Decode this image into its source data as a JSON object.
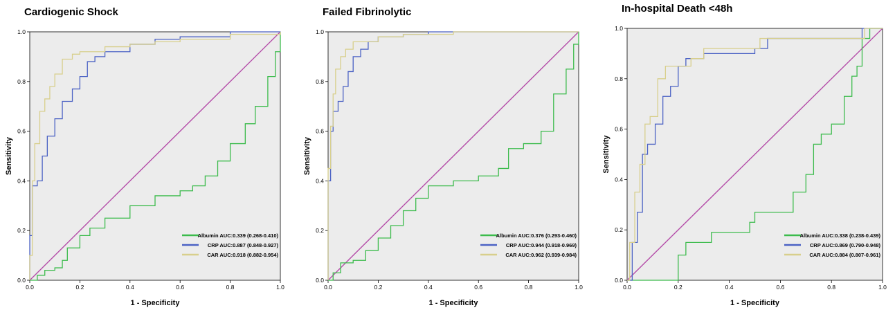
{
  "chart_data": [
    {
      "type": "line",
      "title": "Cardiogenic Shock",
      "xlabel": "1 - Specificity",
      "ylabel": "Sensitivity",
      "xlim": [
        0,
        1
      ],
      "ylim": [
        0,
        1
      ],
      "x_ticks": [
        "0.0",
        "0.2",
        "0.4",
        "0.6",
        "0.8",
        "1.0"
      ],
      "y_ticks": [
        "0.0",
        "0.2",
        "0.4",
        "0.6",
        "0.8",
        "1.0"
      ],
      "legend": "bottom-right",
      "grid": false,
      "reference_line": {
        "color": "#b44ca8",
        "points": [
          [
            0,
            0
          ],
          [
            1,
            1
          ]
        ]
      },
      "series": [
        {
          "name": "Albumin AUC:0.339 (0.268-0.410)",
          "color": "#3cbb4c",
          "points": [
            [
              0,
              0
            ],
            [
              0.03,
              0.02
            ],
            [
              0.06,
              0.04
            ],
            [
              0.1,
              0.05
            ],
            [
              0.13,
              0.08
            ],
            [
              0.15,
              0.13
            ],
            [
              0.2,
              0.18
            ],
            [
              0.24,
              0.21
            ],
            [
              0.3,
              0.25
            ],
            [
              0.4,
              0.3
            ],
            [
              0.5,
              0.34
            ],
            [
              0.6,
              0.36
            ],
            [
              0.65,
              0.38
            ],
            [
              0.7,
              0.42
            ],
            [
              0.75,
              0.48
            ],
            [
              0.8,
              0.55
            ],
            [
              0.86,
              0.63
            ],
            [
              0.9,
              0.7
            ],
            [
              0.95,
              0.82
            ],
            [
              0.98,
              0.92
            ],
            [
              1,
              1
            ]
          ]
        },
        {
          "name": "CRP AUC:0.887 (0.848-0.927)",
          "color": "#4b62c4",
          "points": [
            [
              0,
              0
            ],
            [
              0,
              0.18
            ],
            [
              0.01,
              0.38
            ],
            [
              0.03,
              0.4
            ],
            [
              0.05,
              0.5
            ],
            [
              0.07,
              0.58
            ],
            [
              0.1,
              0.65
            ],
            [
              0.13,
              0.72
            ],
            [
              0.17,
              0.77
            ],
            [
              0.2,
              0.82
            ],
            [
              0.23,
              0.88
            ],
            [
              0.26,
              0.9
            ],
            [
              0.3,
              0.92
            ],
            [
              0.4,
              0.95
            ],
            [
              0.5,
              0.97
            ],
            [
              0.6,
              0.98
            ],
            [
              0.8,
              1
            ],
            [
              1,
              1
            ]
          ]
        },
        {
          "name": "CAR AUC:0.918 (0.882-0.954)",
          "color": "#d8cf8c",
          "points": [
            [
              0,
              0
            ],
            [
              0,
              0.1
            ],
            [
              0.01,
              0.4
            ],
            [
              0.02,
              0.55
            ],
            [
              0.04,
              0.68
            ],
            [
              0.06,
              0.73
            ],
            [
              0.08,
              0.78
            ],
            [
              0.1,
              0.83
            ],
            [
              0.13,
              0.89
            ],
            [
              0.17,
              0.91
            ],
            [
              0.2,
              0.92
            ],
            [
              0.3,
              0.94
            ],
            [
              0.4,
              0.95
            ],
            [
              0.5,
              0.96
            ],
            [
              0.6,
              0.97
            ],
            [
              0.8,
              0.99
            ],
            [
              1,
              1
            ]
          ]
        }
      ]
    },
    {
      "type": "line",
      "title": "Failed Fibrinolytic",
      "xlabel": "1 - Specificity",
      "ylabel": "Sensitivity",
      "xlim": [
        0,
        1
      ],
      "ylim": [
        0,
        1
      ],
      "x_ticks": [
        "0.0",
        "0.2",
        "0.4",
        "0.6",
        "0.8",
        "1.0"
      ],
      "y_ticks": [
        "0.0",
        "0.2",
        "0.4",
        "0.6",
        "0.8",
        "1.0"
      ],
      "legend": "bottom-right",
      "grid": false,
      "reference_line": {
        "color": "#b44ca8",
        "points": [
          [
            0,
            0
          ],
          [
            1,
            1
          ]
        ]
      },
      "series": [
        {
          "name": "Albumin AUC:0.376 (0.293-0.460)",
          "color": "#3cbb4c",
          "points": [
            [
              0,
              0
            ],
            [
              0.02,
              0.03
            ],
            [
              0.05,
              0.07
            ],
            [
              0.1,
              0.08
            ],
            [
              0.15,
              0.12
            ],
            [
              0.2,
              0.17
            ],
            [
              0.25,
              0.22
            ],
            [
              0.3,
              0.28
            ],
            [
              0.35,
              0.33
            ],
            [
              0.4,
              0.38
            ],
            [
              0.5,
              0.4
            ],
            [
              0.6,
              0.42
            ],
            [
              0.68,
              0.45
            ],
            [
              0.72,
              0.53
            ],
            [
              0.78,
              0.55
            ],
            [
              0.85,
              0.6
            ],
            [
              0.9,
              0.75
            ],
            [
              0.95,
              0.85
            ],
            [
              0.98,
              0.95
            ],
            [
              1,
              1
            ]
          ]
        },
        {
          "name": "CRP AUC:0.944 (0.918-0.969)",
          "color": "#4b62c4",
          "points": [
            [
              0,
              0
            ],
            [
              0,
              0.4
            ],
            [
              0.01,
              0.6
            ],
            [
              0.02,
              0.68
            ],
            [
              0.04,
              0.72
            ],
            [
              0.06,
              0.78
            ],
            [
              0.08,
              0.84
            ],
            [
              0.1,
              0.9
            ],
            [
              0.13,
              0.93
            ],
            [
              0.16,
              0.96
            ],
            [
              0.2,
              0.98
            ],
            [
              0.3,
              0.99
            ],
            [
              0.4,
              1
            ],
            [
              1,
              1
            ]
          ]
        },
        {
          "name": "CAR AUC:0.962 (0.939-0.984)",
          "color": "#d8cf8c",
          "points": [
            [
              0,
              0
            ],
            [
              0,
              0.45
            ],
            [
              0.01,
              0.62
            ],
            [
              0.02,
              0.75
            ],
            [
              0.03,
              0.85
            ],
            [
              0.05,
              0.9
            ],
            [
              0.07,
              0.93
            ],
            [
              0.1,
              0.96
            ],
            [
              0.2,
              0.98
            ],
            [
              0.3,
              0.99
            ],
            [
              0.5,
              1
            ],
            [
              1,
              1
            ]
          ]
        }
      ]
    },
    {
      "type": "line",
      "title": "In-hospital Death <48h",
      "xlabel": "1 - Specificity",
      "ylabel": "Sensitivity",
      "xlim": [
        0,
        1
      ],
      "ylim": [
        0,
        1
      ],
      "x_ticks": [
        "0.0",
        "0.2",
        "0.4",
        "0.6",
        "0.8",
        "1.0"
      ],
      "y_ticks": [
        "0.0",
        "0.2",
        "0.4",
        "0.6",
        "0.8",
        "1.0"
      ],
      "legend": "bottom-right",
      "grid": false,
      "reference_line": {
        "color": "#b44ca8",
        "points": [
          [
            0,
            0
          ],
          [
            1,
            1
          ]
        ]
      },
      "series": [
        {
          "name": "Albumin AUC:0.338 (0.238-0.439)",
          "color": "#3cbb4c",
          "points": [
            [
              0,
              0
            ],
            [
              0.17,
              0
            ],
            [
              0.2,
              0.1
            ],
            [
              0.23,
              0.15
            ],
            [
              0.3,
              0.15
            ],
            [
              0.33,
              0.19
            ],
            [
              0.45,
              0.19
            ],
            [
              0.48,
              0.23
            ],
            [
              0.5,
              0.27
            ],
            [
              0.6,
              0.27
            ],
            [
              0.65,
              0.35
            ],
            [
              0.7,
              0.42
            ],
            [
              0.73,
              0.54
            ],
            [
              0.76,
              0.58
            ],
            [
              0.8,
              0.62
            ],
            [
              0.85,
              0.73
            ],
            [
              0.88,
              0.81
            ],
            [
              0.9,
              0.85
            ],
            [
              0.92,
              0.96
            ],
            [
              0.95,
              1
            ],
            [
              1,
              1
            ]
          ]
        },
        {
          "name": "CRP AUC:0.869 (0.790-0.948)",
          "color": "#4b62c4",
          "points": [
            [
              0,
              0
            ],
            [
              0.02,
              0.15
            ],
            [
              0.04,
              0.27
            ],
            [
              0.06,
              0.5
            ],
            [
              0.08,
              0.54
            ],
            [
              0.11,
              0.62
            ],
            [
              0.14,
              0.73
            ],
            [
              0.17,
              0.77
            ],
            [
              0.2,
              0.85
            ],
            [
              0.23,
              0.88
            ],
            [
              0.3,
              0.9
            ],
            [
              0.5,
              0.92
            ],
            [
              0.55,
              0.96
            ],
            [
              0.9,
              0.96
            ],
            [
              0.92,
              1
            ],
            [
              1,
              1
            ]
          ]
        },
        {
          "name": "CAR AUC:0.884 (0.807-0.961)",
          "color": "#d8cf8c",
          "points": [
            [
              0,
              0
            ],
            [
              0.01,
              0.15
            ],
            [
              0.03,
              0.35
            ],
            [
              0.05,
              0.46
            ],
            [
              0.07,
              0.62
            ],
            [
              0.09,
              0.65
            ],
            [
              0.12,
              0.8
            ],
            [
              0.15,
              0.85
            ],
            [
              0.2,
              0.85
            ],
            [
              0.25,
              0.88
            ],
            [
              0.3,
              0.92
            ],
            [
              0.5,
              0.92
            ],
            [
              0.52,
              0.96
            ],
            [
              0.9,
              0.96
            ],
            [
              0.93,
              1
            ],
            [
              1,
              1
            ]
          ]
        }
      ]
    }
  ]
}
